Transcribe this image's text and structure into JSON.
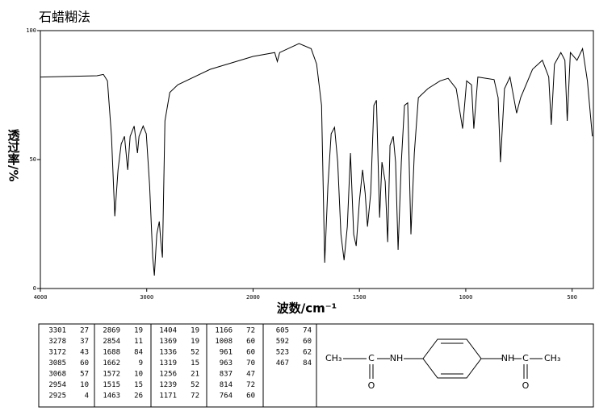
{
  "chart_data": {
    "type": "line",
    "title": "石蜡糊法",
    "x_label": "波数/cm⁻¹",
    "y_label": "透过率/%",
    "xlim": [
      4000,
      400
    ],
    "x_break": 2000,
    "ylim": [
      0,
      100
    ],
    "xticks": [
      4000,
      3000,
      2000,
      1500,
      1000,
      500
    ],
    "yticks": [
      0,
      50,
      100
    ],
    "color": "#000000",
    "x": [
      4000,
      3468,
      3407,
      3369,
      3331,
      3300,
      3270,
      3240,
      3209,
      3179,
      3156,
      3118,
      3087,
      3072,
      3034,
      3004,
      2973,
      2943,
      2928,
      2905,
      2882,
      2867,
      2852,
      2829,
      2783,
      2707,
      2403,
      2000,
      1898,
      1886,
      1875,
      1784,
      1727,
      1701,
      1678,
      1663,
      1648,
      1633,
      1617,
      1602,
      1587,
      1572,
      1557,
      1542,
      1527,
      1515,
      1500,
      1485,
      1473,
      1462,
      1447,
      1432,
      1420,
      1405,
      1394,
      1379,
      1367,
      1356,
      1341,
      1330,
      1318,
      1303,
      1288,
      1273,
      1258,
      1242,
      1223,
      1178,
      1121,
      1083,
      1045,
      1015,
      996,
      973,
      962,
      943,
      867,
      848,
      837,
      818,
      792,
      761,
      742,
      686,
      640,
      610,
      598,
      583,
      553,
      534,
      523,
      508,
      477,
      451,
      428,
      405
    ],
    "values": [
      82,
      82.5,
      83,
      80.5,
      59,
      28,
      46,
      56,
      59,
      46,
      59,
      63,
      52.5,
      59,
      63,
      60,
      40,
      12,
      5,
      21,
      26,
      18,
      12,
      65,
      76,
      79,
      85,
      90,
      91.5,
      88,
      91.5,
      95,
      93,
      87,
      71,
      10,
      40,
      60,
      62.5,
      49,
      21,
      11,
      24,
      52.5,
      21,
      16.5,
      34,
      46,
      37,
      24,
      37,
      71,
      73,
      27.5,
      49,
      41.5,
      18,
      55.5,
      59,
      49,
      15,
      49,
      71,
      72,
      21,
      52.5,
      74,
      77.5,
      80.5,
      81.5,
      77.5,
      62,
      80.5,
      79,
      62,
      82,
      81,
      74,
      49,
      77.5,
      82,
      68,
      74,
      85,
      88.5,
      82,
      63.5,
      87,
      91.5,
      88.5,
      65,
      91.5,
      88.5,
      93,
      80.5,
      59
    ]
  },
  "peak_table": [
    [
      [
        3301,
        27
      ],
      [
        3278,
        37
      ],
      [
        3172,
        43
      ],
      [
        3085,
        60
      ],
      [
        3068,
        57
      ],
      [
        2954,
        10
      ],
      [
        2925,
        4
      ]
    ],
    [
      [
        2869,
        19
      ],
      [
        2854,
        11
      ],
      [
        1688,
        84
      ],
      [
        1662,
        9
      ],
      [
        1572,
        10
      ],
      [
        1515,
        15
      ],
      [
        1463,
        26
      ]
    ],
    [
      [
        1404,
        19
      ],
      [
        1369,
        19
      ],
      [
        1336,
        52
      ],
      [
        1319,
        15
      ],
      [
        1256,
        21
      ],
      [
        1239,
        52
      ],
      [
        1171,
        72
      ]
    ],
    [
      [
        1166,
        72
      ],
      [
        1008,
        60
      ],
      [
        961,
        60
      ],
      [
        963,
        70
      ],
      [
        837,
        47
      ],
      [
        814,
        72
      ],
      [
        764,
        60
      ]
    ],
    [
      [
        605,
        74
      ],
      [
        592,
        60
      ],
      [
        523,
        62
      ],
      [
        467,
        84
      ]
    ]
  ],
  "structure": {
    "labels": [
      "CH₃",
      "C",
      "NH",
      "NH",
      "C",
      "CH₃",
      "O",
      "O"
    ]
  }
}
